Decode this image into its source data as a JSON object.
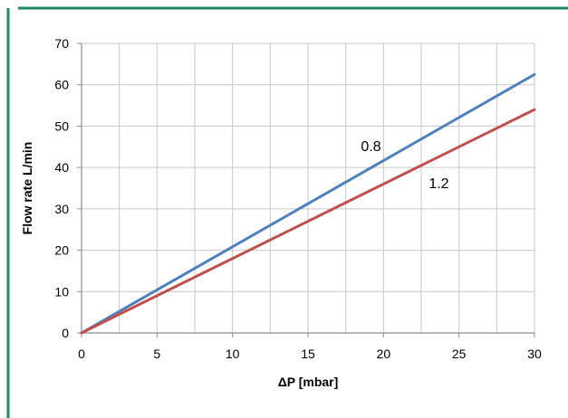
{
  "chart_data": {
    "type": "line",
    "title": "",
    "xlabel": "ΔP [mbar]",
    "ylabel": "Flow rate L/min",
    "xlim": [
      0,
      30
    ],
    "ylim": [
      0,
      70
    ],
    "x_ticks": [
      0,
      5,
      10,
      15,
      20,
      25,
      30
    ],
    "x_tick_labels": [
      "0",
      "5",
      "10",
      "15",
      "20",
      "25",
      "30"
    ],
    "x_minor_grid_step": 2.5,
    "y_ticks": [
      0,
      10,
      20,
      30,
      40,
      50,
      60,
      70
    ],
    "y_tick_labels": [
      "0",
      "10",
      "20",
      "30",
      "40",
      "50",
      "60",
      "70"
    ],
    "grid": true,
    "legend": "none",
    "series": [
      {
        "label": "0.8",
        "color": "#4f81bd",
        "x": [
          0,
          30
        ],
        "y": [
          0,
          62.5
        ],
        "label_at": [
          18.5,
          44
        ]
      },
      {
        "label": "1.2",
        "color": "#c0504d",
        "x": [
          0,
          30
        ],
        "y": [
          0,
          54
        ],
        "label_at": [
          23,
          35
        ]
      }
    ],
    "frame_color": "#1f8a5b"
  }
}
